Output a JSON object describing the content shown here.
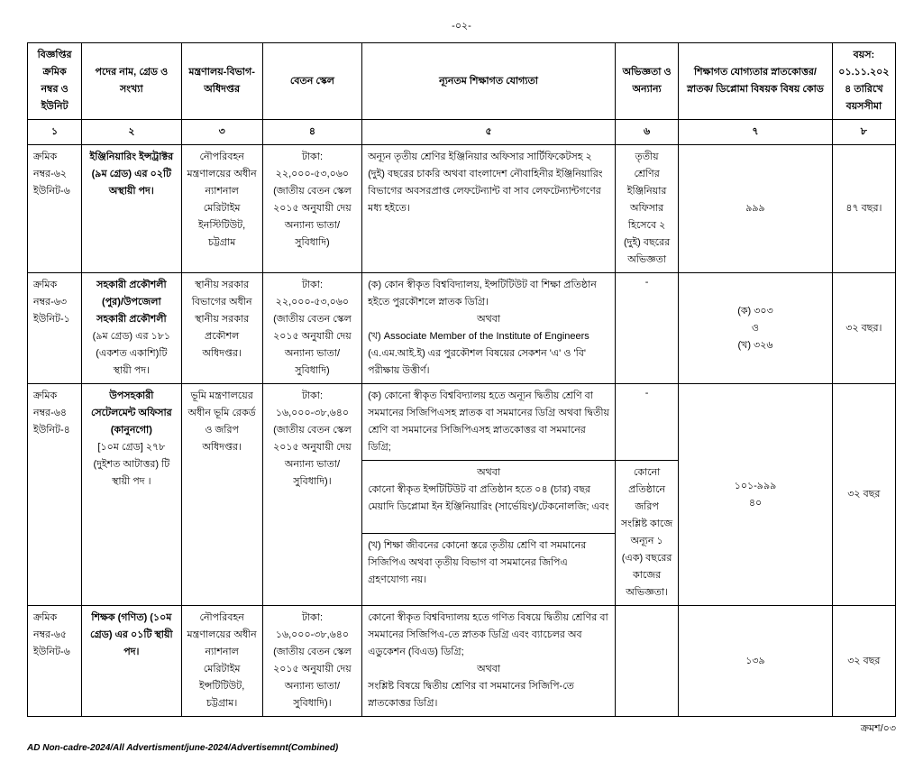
{
  "page_number": "-০২-",
  "headers": [
    "বিজ্ঞপ্তির ক্রমিক নম্বর ও ইউনিট",
    "পদের নাম, গ্রেড ও সংখ্যা",
    "মন্ত্রণালয়-বিভাগ-অধিদপ্তর",
    "বেতন স্কেল",
    "ন্যূনতম শিক্ষাগত যোগ্যতা",
    "অভিজ্ঞতা ও অন্যান্য",
    "শিক্ষাগত যোগ্যতার স্নাতকোত্তর/স্নাতক/ ডিপ্লোমা বিষয়ক বিষয় কোড",
    "বয়স: ০১.১১.২০২৪ তারিখে বয়সসীমা"
  ],
  "colnums": [
    "১",
    "২",
    "৩",
    "৪",
    "৫",
    "৬",
    "৭",
    "৮"
  ],
  "r1": {
    "serial": "ক্রমিক নম্বর-৬২ ইউনিট-৬",
    "post_b": "ইঞ্জিনিয়ারিং ইন্সট্রাক্টর (৯ম গ্রেড) এর ০২টি অস্থায়ী পদ।",
    "ministry": "নৌপরিবহন মন্ত্রণালয়ের অধীন ন্যাশনাল মেরিটাইম ইনস্টিটিউট, চট্টগ্রাম",
    "scale": "টাকা: ২২,০০০-৫৩,০৬০ (জাতীয় বেতন স্কেল ২০১৫ অনুযায়ী দেয় অন্যান্য ভাতা/সুবিধাদি)",
    "qual": "অন্যূন তৃতীয় শ্রেণির ইঞ্জিনিয়ার অফিসার সার্টিফিকেটসহ ২ (দুই) বছরের চাকরি অথবা বাংলাদেশ নৌবাহিনীর ইঞ্জিনিয়ারিং বিভাগের অবসরপ্রাপ্ত লেফটেন্যান্ট বা সাব লেফটেন্যান্টগণের মধ্য হইতে।",
    "exp": "তৃতীয় শ্রেণির ইঞ্জিনিয়ার অফিসার হিসেবে ২ (দুই) বছরের অভিজ্ঞতা",
    "code": "৯৯৯",
    "age": "৪৭ বছর।"
  },
  "r2": {
    "serial": "ক্রমিক নম্বর-৬৩ ইউনিট-১",
    "post_b": "সহকারী প্রকৌশলী (পুর)/উপজেলা সহকারী প্রকৌশলী",
    "post_n": "(৯ম গ্রেড) এর ১৮১ (একশত একাশি)টি স্থায়ী পদ।",
    "ministry": "স্থানীয় সরকার বিভাগের অধীন স্থানীয় সরকার প্রকৌশল অধিদপ্তর।",
    "scale": "টাকা: ২২,০০০-৫৩,০৬০ (জাতীয় বেতন স্কেল ২০১৫ অনুযায়ী দেয় অন্যান্য ভাতা/সুবিধাদি)",
    "qual1": "(ক) কোন স্বীকৃত বিশ্ববিদ্যালয়, ইন্সটিটিউট বা শিক্ষা প্রতিষ্ঠান হইতে পুরকৌশলে স্নাতক ডিগ্রি।",
    "qualor": "অথবা",
    "qual2": "(খ) Associate Member of the Institute of Engineers (এ.এম.আই.ই) এর পুরকৌশল বিষয়ের সেকশন 'এ' ও 'বি' পরীক্ষায় উত্তীর্ণ।",
    "exp": "-",
    "code_a": "(ক) ৩০৩",
    "code_o": "ও",
    "code_b": "(খ) ৩২৬",
    "age": "৩২ বছর।"
  },
  "r3": {
    "serial": "ক্রমিক নম্বর-৬৪ ইউনিট-৪",
    "post_b": "উপসহকারী সেটেলমেন্ট অফিসার (কানুনগো)",
    "post_n": "[১০ম গ্রেড] ২৭৮ (দুইশত আটাত্তর) টি স্থায়ী পদ ।",
    "ministry": "ভূমি মন্ত্রণালয়ের অধীন ভূমি রেকর্ড ও জরিপ অধিদপ্তর।",
    "scale": "টাকা: ১৬,০০০-৩৮,৬৪০ (জাতীয় বেতন স্কেল ২০১৫ অনুযায়ী দেয় অন্যান্য ভাতা/সুবিধাদি)।",
    "q1": "(ক) কোনো স্বীকৃত বিশ্ববিদ্যালয় হতে অন্যূন দ্বিতীয় শ্রেণি বা সমমানের সিজিপিএসহ স্নাতক বা সমমানের ডিগ্রি অথবা দ্বিতীয় শ্রেণি বা সমমানের সিজিপিএসহ স্নাতকোত্তর বা সমমানের ডিগ্রি;",
    "qor1": "অথবা",
    "q2": "কোনো স্বীকৃত ইন্সটিটিউট বা প্রতিষ্ঠান হতে ০৪ (চার) বছর মেয়াদি ডিপ্লোমা ইন ইঞ্জিনিয়ারিং (সার্ভেয়িং)/টেকনোলজি; এবং",
    "q3": "(খ) শিক্ষা জীবনের কোনো স্তরে তৃতীয় শ্রেণি বা সমমানের সিজিপিএ অথবা তৃতীয় বিভাগ বা সমমানের জিপিএ গ্রহণযোগ্য নয়।",
    "exp1": "-",
    "exp2": "কোনো প্রতিষ্ঠানে জরিপ সংশ্লিষ্ট কাজে অন্যূন ১ (এক) বছরের কাজের অভিজ্ঞতা।",
    "code1": "১০১-৯৯৯",
    "code2": "৪০",
    "age": "৩২ বছর"
  },
  "r4": {
    "serial": "ক্রমিক নম্বর-৬৫ ইউনিট-৬",
    "post_b": "শিক্ষক (গণিত) (১০ম গ্রেড) এর ০১টি স্থায়ী পদ।",
    "ministry": "নৌপরিবহন মন্ত্রণালয়ের অধীন ন্যাশনাল মেরিটাইম ইন্সটিটিউট, চট্টগ্রাম।",
    "scale": "টাকা: ১৬,০০০-৩৮,৬৪০ (জাতীয় বেতন স্কেল ২০১৫ অনুযায়ী দেয় অন্যান্য ভাতা/সুবিধাদি)।",
    "q1": "কোনো স্বীকৃত বিশ্ববিদ্যালয় হতে গণিত বিষয়ে দ্বিতীয় শ্রেণির বা সমমানের সিজিপিএ-তে স্নাতক ডিগ্রি এবং ব্যাচেলর অব এডুকেশন (বিএড) ডিগ্রি;",
    "qor": "অথবা",
    "q2": "সংশ্লিষ্ট বিষয়ে দ্বিতীয় শ্রেণির বা সমমানের সিজিপি-তে স্নাতকোত্তর ডিগ্রি।",
    "code": "১৩৯",
    "age": "৩২ বছর"
  },
  "footer_right": "ক্রমশ/০৩",
  "footer_left": "AD Non-cadre-2024/All Advertisment/june-2024/Advertisemnt(Combined)"
}
